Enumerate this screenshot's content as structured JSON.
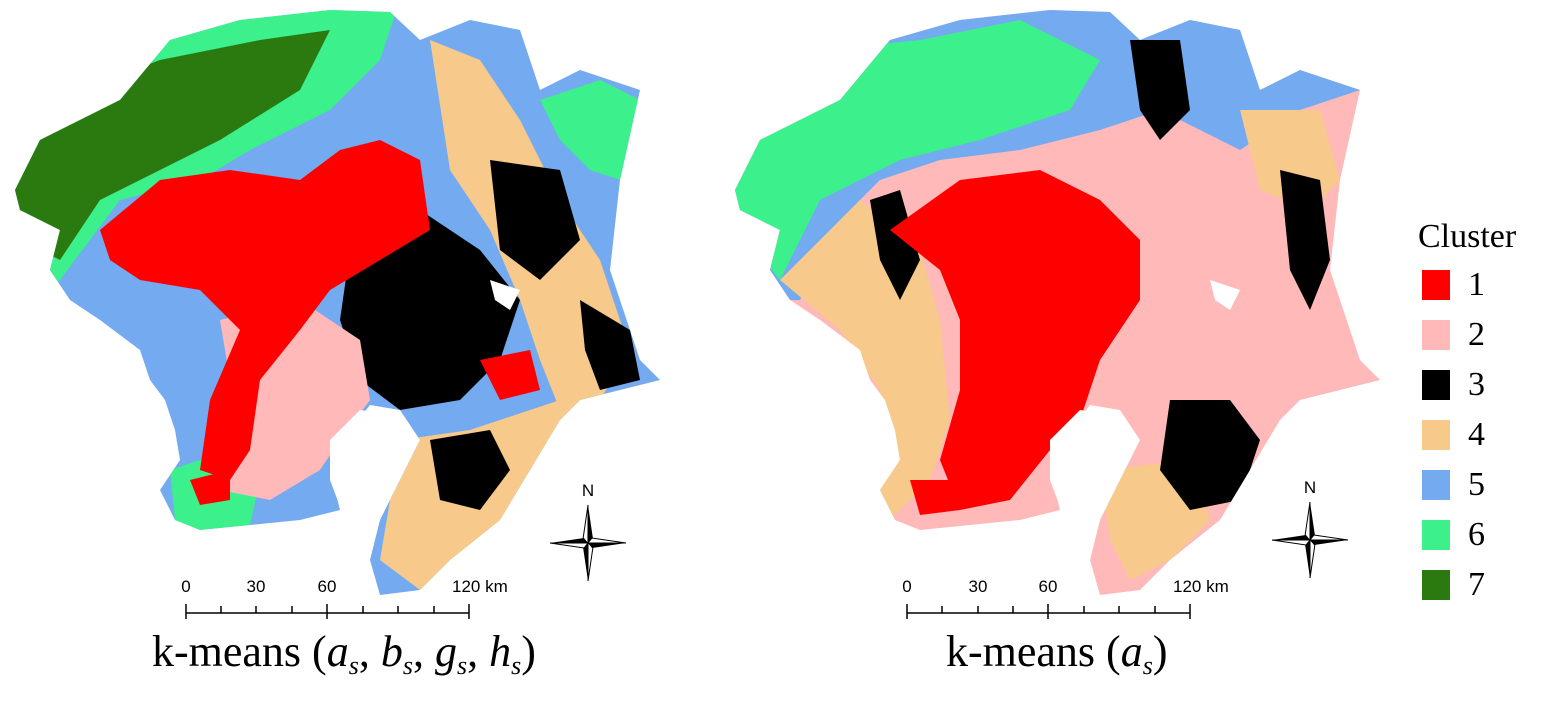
{
  "legend": {
    "title": "Cluster",
    "items": [
      {
        "label": "1",
        "color": "#ff0000"
      },
      {
        "label": "2",
        "color": "#ffb9b9"
      },
      {
        "label": "3",
        "color": "#000000"
      },
      {
        "label": "4",
        "color": "#f7c98a"
      },
      {
        "label": "5",
        "color": "#73aaf0"
      },
      {
        "label": "6",
        "color": "#3cf08c"
      },
      {
        "label": "7",
        "color": "#2a7a10"
      }
    ]
  },
  "maps": [
    {
      "title_prefix": "k-means (",
      "title_vars": [
        {
          "base": "a",
          "sub": "s"
        },
        {
          "base": "b",
          "sub": "s"
        },
        {
          "base": "g",
          "sub": "s"
        },
        {
          "base": "h",
          "sub": "s"
        }
      ],
      "title_suffix": ")",
      "scale_labels": [
        "0",
        "30",
        "60",
        "120 km"
      ],
      "north_label": "N"
    },
    {
      "title_prefix": "k-means (",
      "title_vars": [
        {
          "base": "a",
          "sub": "s"
        }
      ],
      "title_suffix": ")",
      "scale_labels": [
        "0",
        "30",
        "60",
        "120 km"
      ],
      "north_label": "N"
    }
  ]
}
